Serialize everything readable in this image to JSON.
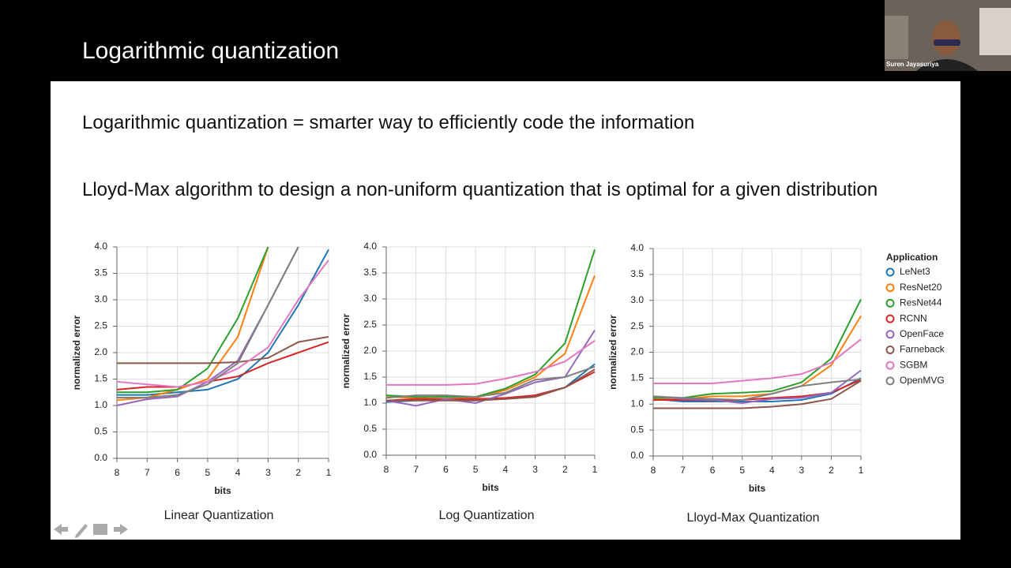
{
  "slide": {
    "title": "Logarithmic quantization",
    "bullets": [
      "Logarithmic quantization = smarter way to efficiently code the information",
      "Lloyd-Max algorithm to design a non-uniform quantization that is optimal for a given distribution"
    ]
  },
  "webcam": {
    "name": "Suren Jayasuriya"
  },
  "chart_data": [
    {
      "type": "line",
      "title": "Linear Quantization",
      "x_label": "bits",
      "y_label": "normalized error",
      "categories": [
        "8",
        "7",
        "6",
        "5",
        "4",
        "3",
        "2",
        "1"
      ],
      "ylim": [
        0,
        4
      ],
      "yticks": [
        {
          "value": 0,
          "label": "0.0"
        },
        0.5,
        {
          "value": 1,
          "label": "1.0"
        },
        1.5,
        {
          "value": 2,
          "label": "2.0"
        },
        2.5,
        {
          "value": 3,
          "label": "3.0"
        },
        3.5,
        {
          "value": 4,
          "label": "4.0"
        }
      ],
      "grid": true,
      "series": [
        {
          "name": "LeNet3",
          "color": "#1f77b4",
          "values": [
            1.2,
            1.2,
            1.25,
            1.3,
            1.5,
            2.0,
            2.9,
            3.95
          ]
        },
        {
          "name": "ResNet20",
          "color": "#ff7f0e",
          "values": [
            1.1,
            1.15,
            1.3,
            1.5,
            2.3,
            4.0,
            null,
            null
          ]
        },
        {
          "name": "ResNet44",
          "color": "#2ca02c",
          "values": [
            1.25,
            1.25,
            1.3,
            1.7,
            2.65,
            4.0,
            null,
            null
          ]
        },
        {
          "name": "RCNN",
          "color": "#d62728",
          "values": [
            1.3,
            1.35,
            1.35,
            1.45,
            1.55,
            1.8,
            2.0,
            2.2
          ]
        },
        {
          "name": "OpenFace",
          "color": "#9467bd",
          "values": [
            1.0,
            1.12,
            1.17,
            1.45,
            1.85,
            2.9,
            4.0,
            null
          ]
        },
        {
          "name": "Farneback",
          "color": "#8c564b",
          "values": [
            1.8,
            1.8,
            1.8,
            1.8,
            1.82,
            1.9,
            2.2,
            2.3
          ]
        },
        {
          "name": "SGBM",
          "color": "#e377c2",
          "values": [
            1.45,
            1.4,
            1.35,
            1.45,
            1.7,
            2.1,
            3.0,
            3.75
          ]
        },
        {
          "name": "OpenMVG",
          "color": "#7f7f7f",
          "values": [
            1.15,
            1.15,
            1.2,
            1.4,
            1.8,
            2.9,
            4.0,
            null
          ]
        }
      ]
    },
    {
      "type": "line",
      "title": "Log Quantization",
      "x_label": "bits",
      "y_label": "normalized error",
      "categories": [
        "8",
        "7",
        "6",
        "5",
        "4",
        "3",
        "2",
        "1"
      ],
      "ylim": [
        0,
        4
      ],
      "yticks": [
        {
          "value": 0,
          "label": "0.0"
        },
        0.5,
        {
          "value": 1,
          "label": "1.0"
        },
        1.5,
        {
          "value": 2,
          "label": "2.0"
        },
        2.5,
        {
          "value": 3,
          "label": "3.0"
        },
        3.5,
        {
          "value": 4,
          "label": "4.0"
        }
      ],
      "grid": true,
      "series": [
        {
          "name": "LeNet3",
          "color": "#1f77b4",
          "values": [
            1.02,
            1.05,
            1.08,
            1.07,
            1.08,
            1.15,
            1.3,
            1.75
          ]
        },
        {
          "name": "ResNet20",
          "color": "#ff7f0e",
          "values": [
            1.12,
            1.1,
            1.12,
            1.1,
            1.25,
            1.5,
            1.95,
            3.45
          ]
        },
        {
          "name": "ResNet44",
          "color": "#2ca02c",
          "values": [
            1.15,
            1.12,
            1.12,
            1.12,
            1.28,
            1.55,
            2.15,
            3.95
          ]
        },
        {
          "name": "RCNN",
          "color": "#d62728",
          "values": [
            1.05,
            1.08,
            1.08,
            1.08,
            1.1,
            1.15,
            1.3,
            1.6
          ]
        },
        {
          "name": "OpenFace",
          "color": "#9467bd",
          "values": [
            1.05,
            0.95,
            1.08,
            1.0,
            1.18,
            1.4,
            1.5,
            2.4
          ]
        },
        {
          "name": "Farneback",
          "color": "#8c564b",
          "values": [
            1.05,
            1.05,
            1.05,
            1.05,
            1.08,
            1.12,
            1.3,
            1.65
          ]
        },
        {
          "name": "SGBM",
          "color": "#e377c2",
          "values": [
            1.35,
            1.35,
            1.35,
            1.37,
            1.47,
            1.6,
            1.8,
            2.2
          ]
        },
        {
          "name": "OpenMVG",
          "color": "#7f7f7f",
          "values": [
            1.1,
            1.15,
            1.15,
            1.12,
            1.2,
            1.45,
            1.5,
            1.7
          ]
        }
      ]
    },
    {
      "type": "line",
      "title": "Lloyd-Max Quantization",
      "x_label": "bits",
      "y_label": "normalized error",
      "legend_title": "Application",
      "categories": [
        "8",
        "7",
        "6",
        "5",
        "4",
        "3",
        "2",
        "1"
      ],
      "ylim": [
        0,
        4
      ],
      "yticks": [
        {
          "value": 0,
          "label": "0.0"
        },
        0.5,
        {
          "value": 1,
          "label": "1.0"
        },
        1.5,
        {
          "value": 2,
          "label": "2.0"
        },
        2.5,
        {
          "value": 3,
          "label": "3.0"
        },
        3.5,
        {
          "value": 4,
          "label": "4.0"
        }
      ],
      "grid": true,
      "series": [
        {
          "name": "LeNet3",
          "color": "#1f77b4",
          "values": [
            1.1,
            1.05,
            1.05,
            1.05,
            1.05,
            1.08,
            1.2,
            1.5
          ]
        },
        {
          "name": "ResNet20",
          "color": "#ff7f0e",
          "values": [
            1.1,
            1.1,
            1.15,
            1.15,
            1.2,
            1.35,
            1.75,
            2.7
          ]
        },
        {
          "name": "ResNet44",
          "color": "#2ca02c",
          "values": [
            1.12,
            1.12,
            1.2,
            1.22,
            1.25,
            1.42,
            1.88,
            3.02
          ]
        },
        {
          "name": "RCNN",
          "color": "#d62728",
          "values": [
            1.08,
            1.08,
            1.07,
            1.08,
            1.12,
            1.15,
            1.22,
            1.47
          ]
        },
        {
          "name": "OpenFace",
          "color": "#9467bd",
          "values": [
            1.15,
            1.1,
            1.08,
            1.02,
            1.1,
            1.12,
            1.22,
            1.65
          ]
        },
        {
          "name": "Farneback",
          "color": "#8c564b",
          "values": [
            0.92,
            0.92,
            0.92,
            0.92,
            0.95,
            1.0,
            1.1,
            1.45
          ]
        },
        {
          "name": "SGBM",
          "color": "#e377c2",
          "values": [
            1.4,
            1.4,
            1.4,
            1.45,
            1.5,
            1.58,
            1.8,
            2.25
          ]
        },
        {
          "name": "OpenMVG",
          "color": "#7f7f7f",
          "values": [
            1.15,
            1.12,
            1.1,
            1.08,
            1.2,
            1.35,
            1.42,
            1.48
          ]
        }
      ]
    }
  ]
}
